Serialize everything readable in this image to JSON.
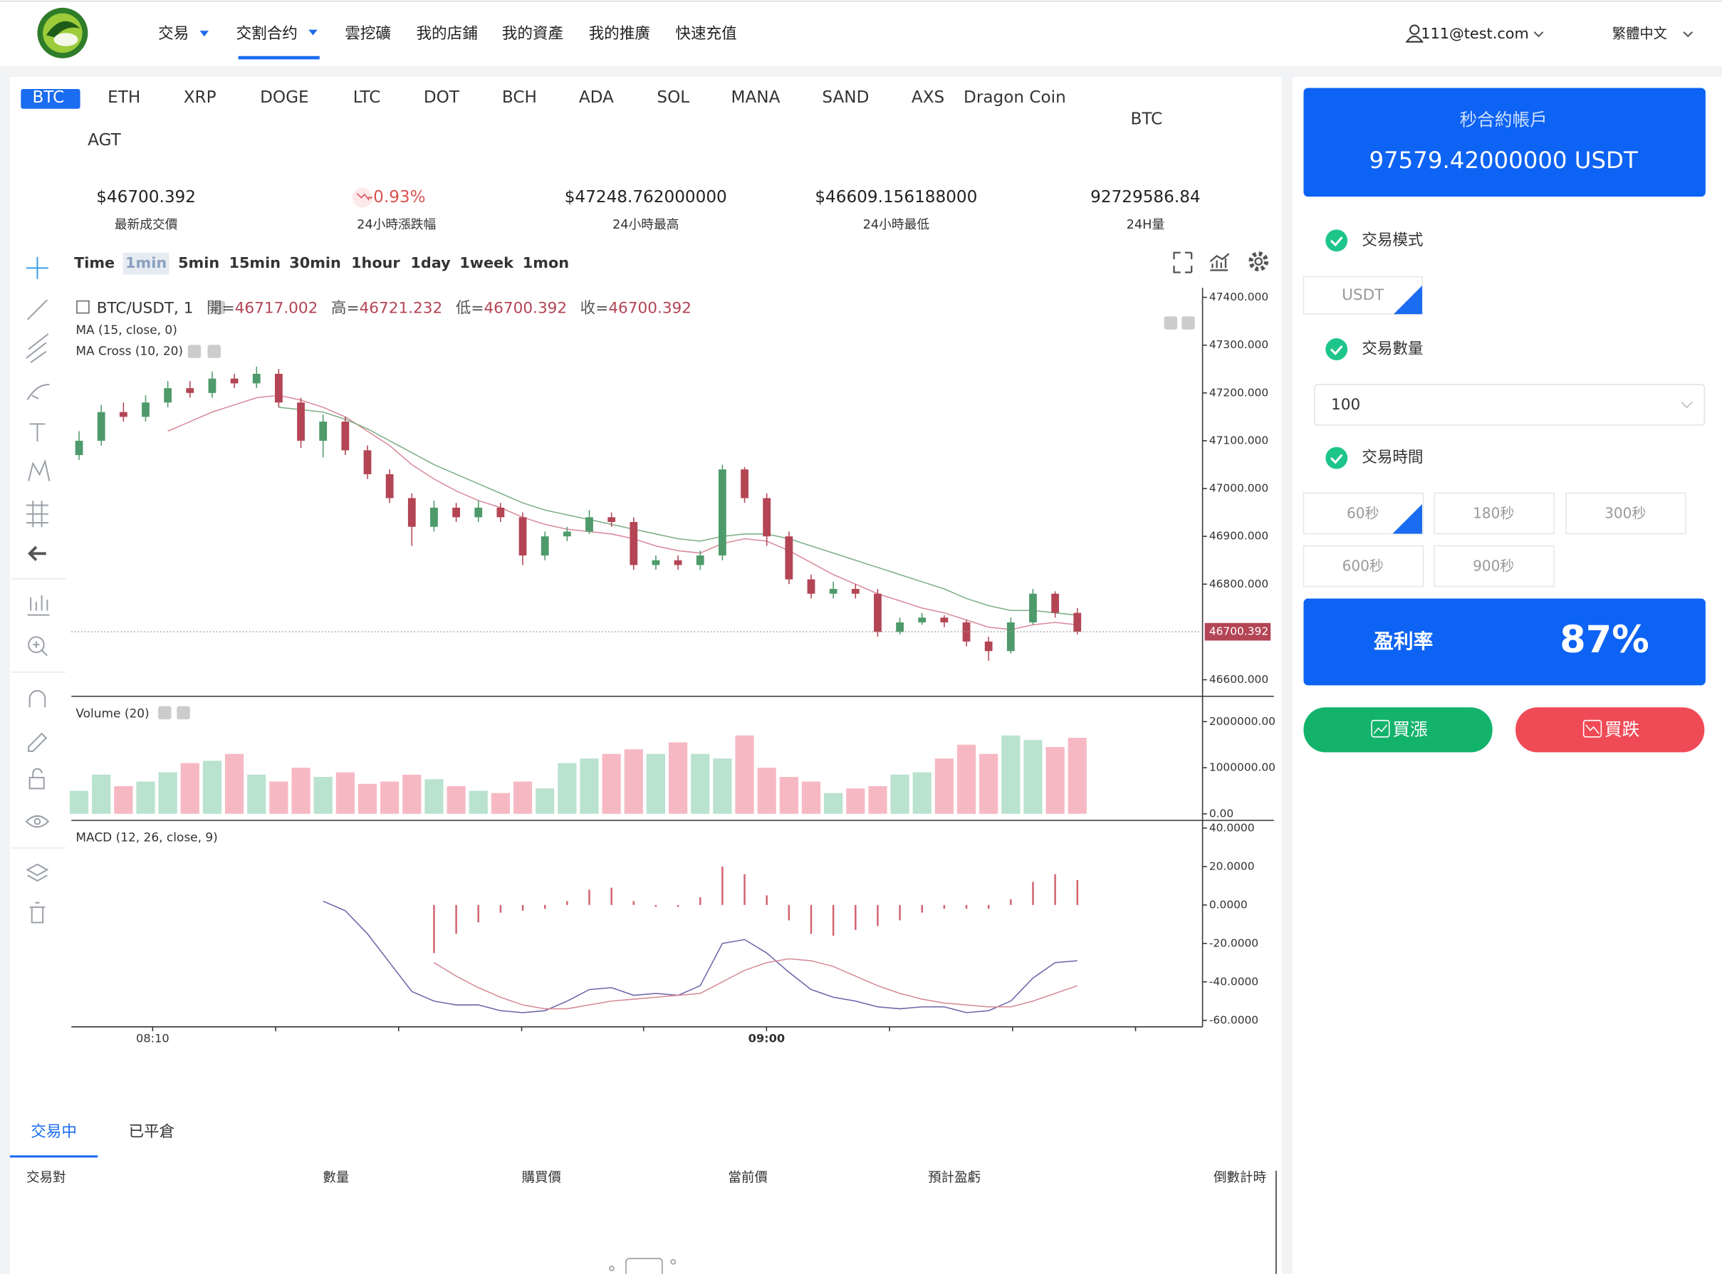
{
  "nav": {
    "menu": [
      "交易",
      "交割合约",
      "雲挖礦",
      "我的店鋪",
      "我的資產",
      "我的推廣",
      "快速充值"
    ],
    "user": "111@test.com",
    "language": "繁體中文"
  },
  "coins": [
    "BTC",
    "ETH",
    "XRP",
    "DOGE",
    "LTC",
    "DOT",
    "BCH",
    "ADA",
    "SOL",
    "MANA",
    "SAND",
    "AXS",
    "Dragon Coin",
    "AGT"
  ],
  "pair_label": "BTC",
  "stats": [
    {
      "value": "$46700.392",
      "label": "最新成交價"
    },
    {
      "value": "-0.93%",
      "label": "24小時漲跌幅"
    },
    {
      "value": "$47248.762000000",
      "label": "24小時最高"
    },
    {
      "value": "$46609.156188000",
      "label": "24小時最低"
    },
    {
      "value": "92729586.84",
      "label": "24H量"
    }
  ],
  "intervals": [
    "Time",
    "1min",
    "5min",
    "15min",
    "30min",
    "1hour",
    "1day",
    "1week",
    "1mon"
  ],
  "kline": {
    "type": "candlestick",
    "title": "BTC/USDT, 1",
    "ohlc": [
      {
        "label": "開=",
        "value": 46717.002
      },
      {
        "label": "高=",
        "value": 46721.232
      },
      {
        "label": "低=",
        "value": 46700.392
      },
      {
        "label": "收=",
        "value": 46700.392
      }
    ],
    "ma_label": "MA (15, close, 0)",
    "ma_cross_label": "MA Cross (10, 20)",
    "up_color": "#4e9a6a",
    "down_color": "#b34555",
    "candles": [
      [
        47070,
        47120,
        47060,
        47100
      ],
      [
        47100,
        47175,
        47090,
        47160
      ],
      [
        47160,
        47180,
        47140,
        47150
      ],
      [
        47150,
        47195,
        47140,
        47180
      ],
      [
        47180,
        47225,
        47170,
        47210
      ],
      [
        47210,
        47225,
        47190,
        47200
      ],
      [
        47200,
        47245,
        47190,
        47230
      ],
      [
        47230,
        47240,
        47210,
        47220
      ],
      [
        47220,
        47255,
        47210,
        47240
      ],
      [
        47240,
        47250,
        47170,
        47180
      ],
      [
        47180,
        47190,
        47085,
        47100
      ],
      [
        47100,
        47155,
        47065,
        47140
      ],
      [
        47140,
        47150,
        47070,
        47080
      ],
      [
        47080,
        47090,
        47020,
        47030
      ],
      [
        47030,
        47040,
        46970,
        46980
      ],
      [
        46980,
        46990,
        46880,
        46920
      ],
      [
        46920,
        46975,
        46910,
        46960
      ],
      [
        46960,
        46970,
        46930,
        46940
      ],
      [
        46940,
        46975,
        46930,
        46960
      ],
      [
        46960,
        46970,
        46930,
        46940
      ],
      [
        46940,
        46950,
        46840,
        46860
      ],
      [
        46860,
        46910,
        46850,
        46900
      ],
      [
        46900,
        46920,
        46890,
        46910
      ],
      [
        46910,
        46955,
        46905,
        46940
      ],
      [
        46940,
        46950,
        46920,
        46930
      ],
      [
        46930,
        46940,
        46830,
        46840
      ],
      [
        46840,
        46860,
        46830,
        46850
      ],
      [
        46850,
        46860,
        46830,
        46840
      ],
      [
        46840,
        46870,
        46830,
        46860
      ],
      [
        46860,
        47050,
        46850,
        47040
      ],
      [
        47040,
        47045,
        46970,
        46980
      ],
      [
        46980,
        46990,
        46880,
        46900
      ],
      [
        46900,
        46910,
        46800,
        46810
      ],
      [
        46810,
        46820,
        46770,
        46780
      ],
      [
        46780,
        46805,
        46770,
        46790
      ],
      [
        46790,
        46800,
        46770,
        46780
      ],
      [
        46780,
        46790,
        46690,
        46700
      ],
      [
        46700,
        46730,
        46695,
        46720
      ],
      [
        46720,
        46740,
        46715,
        46730
      ],
      [
        46730,
        46735,
        46710,
        46720
      ],
      [
        46720,
        46725,
        46670,
        46680
      ],
      [
        46680,
        46690,
        46640,
        46660
      ],
      [
        46660,
        46730,
        46655,
        46720
      ],
      [
        46720,
        46790,
        46715,
        46780
      ],
      [
        46780,
        46785,
        46730,
        46740
      ],
      [
        46740,
        46750,
        46695,
        46700.392
      ]
    ],
    "ylim": [
      46570,
      47420
    ],
    "yticks": [
      {
        "value": 47400,
        "label": "47400.000"
      },
      {
        "value": 47300,
        "label": "47300.000"
      },
      {
        "value": 47200,
        "label": "47200.000"
      },
      {
        "value": 47100,
        "label": "47100.000"
      },
      {
        "value": 47000,
        "label": "47000.000"
      },
      {
        "value": 46900,
        "label": "46900.000"
      },
      {
        "value": 46800,
        "label": "46800.000"
      },
      {
        "value": 46600,
        "label": "46600.000"
      }
    ],
    "last_price": 46700.392,
    "ma_lines": [
      {
        "color": "#d98a9a",
        "values": [
          null,
          null,
          null,
          null,
          47120,
          47140,
          47160,
          47175,
          47190,
          47195,
          47185,
          47170,
          47150,
          47120,
          47090,
          47050,
          47020,
          46995,
          46975,
          46960,
          46940,
          46925,
          46915,
          46910,
          46905,
          46895,
          46880,
          46870,
          46865,
          46885,
          46895,
          46890,
          46870,
          46845,
          46820,
          46800,
          46780,
          46765,
          46750,
          46740,
          46725,
          46710,
          46705,
          46715,
          46720,
          46715
        ]
      },
      {
        "color": "#7fae86",
        "values": [
          null,
          null,
          null,
          null,
          null,
          null,
          null,
          null,
          null,
          47170,
          47165,
          47160,
          47145,
          47125,
          47100,
          47075,
          47050,
          47030,
          47010,
          46990,
          46970,
          46955,
          46945,
          46935,
          46925,
          46915,
          46905,
          46895,
          46890,
          46900,
          46905,
          46905,
          46895,
          46880,
          46865,
          46850,
          46835,
          46820,
          46805,
          46790,
          46770,
          46755,
          46745,
          46745,
          46740,
          46735
        ]
      }
    ],
    "volume": {
      "title": "Volume (20)",
      "ylim": [
        0,
        2550000
      ],
      "yticks": [
        {
          "value": 2000000,
          "label": "2000000.00"
        },
        {
          "value": 1000000,
          "label": "1000000.00"
        },
        {
          "value": 0,
          "label": "0.00"
        }
      ],
      "values": [
        500000,
        850000,
        600000,
        700000,
        900000,
        1100000,
        1150000,
        1300000,
        850000,
        700000,
        1000000,
        800000,
        900000,
        650000,
        700000,
        850000,
        750000,
        600000,
        500000,
        450000,
        700000,
        550000,
        1100000,
        1200000,
        1300000,
        1400000,
        1300000,
        1550000,
        1300000,
        1200000,
        1700000,
        1000000,
        800000,
        700000,
        450000,
        550000,
        600000,
        850000,
        900000,
        1200000,
        1500000,
        1300000,
        1700000,
        1600000,
        1450000,
        1650000
      ]
    },
    "macd": {
      "title": "MACD (12, 26, close, 9)",
      "ylim": [
        -63.4,
        44
      ],
      "yticks": [
        {
          "value": 40,
          "label": "40.0000"
        },
        {
          "value": 20,
          "label": "20.0000"
        },
        {
          "value": 0,
          "label": "0.0000"
        },
        {
          "value": -20,
          "label": "-20.0000"
        },
        {
          "value": -40,
          "label": "-40.0000"
        },
        {
          "value": -60,
          "label": "-60.0000"
        }
      ],
      "hist": [
        null,
        null,
        null,
        null,
        null,
        null,
        null,
        null,
        null,
        null,
        null,
        null,
        null,
        null,
        null,
        null,
        -25,
        -15,
        -9,
        -4,
        -3,
        -2,
        2,
        8,
        9,
        2,
        -1,
        -1,
        4,
        20,
        16,
        5,
        -8,
        -15,
        -16,
        -13,
        -11,
        -8,
        -4,
        -2,
        -2,
        -2,
        3,
        12,
        16,
        13
      ],
      "dif": [
        null,
        null,
        null,
        null,
        null,
        null,
        null,
        null,
        null,
        null,
        null,
        2,
        -3,
        -15,
        -30,
        -45,
        -50,
        -52,
        -52,
        -55,
        -56,
        -55,
        -50,
        -44,
        -43,
        -47,
        -46,
        -47,
        -42,
        -20,
        -18,
        -25,
        -35,
        -44,
        -48,
        -50,
        -53,
        -54,
        -53,
        -53,
        -56,
        -55,
        -50,
        -38,
        -30,
        -29
      ],
      "dea": [
        null,
        null,
        null,
        null,
        null,
        null,
        null,
        null,
        null,
        null,
        null,
        null,
        null,
        null,
        null,
        null,
        -30,
        -37,
        -43,
        -48,
        -52,
        -54,
        -54,
        -52,
        -50,
        -49,
        -48,
        -47,
        -46,
        -40,
        -34,
        -30,
        -28,
        -29,
        -32,
        -37,
        -42,
        -46,
        -49,
        -51,
        -52,
        -53,
        -53,
        -50,
        -46,
        -42
      ],
      "dif_color": "#6b64a8",
      "dea_color": "#d58a96",
      "hist_color": "#d2626f"
    },
    "time_labels": [
      "08:10",
      "09:00"
    ]
  },
  "account": {
    "title": "秒合約帳戶",
    "balance": "97579.42000000 USDT",
    "mode_label": "交易模式",
    "mode": "USDT",
    "amount_label": "交易數量",
    "amount": "100",
    "time_label": "交易時間",
    "times": [
      "60秒",
      "180秒",
      "300秒",
      "600秒",
      "900秒"
    ],
    "profit_label": "盈利率",
    "profit": "87%",
    "buy_up": "買漲",
    "buy_down": "買跌"
  },
  "orders": {
    "tabs": [
      "交易中",
      "已平倉"
    ],
    "columns": [
      "交易對",
      "數量",
      "購買價",
      "當前價",
      "預計盈虧",
      "倒數計時"
    ]
  }
}
